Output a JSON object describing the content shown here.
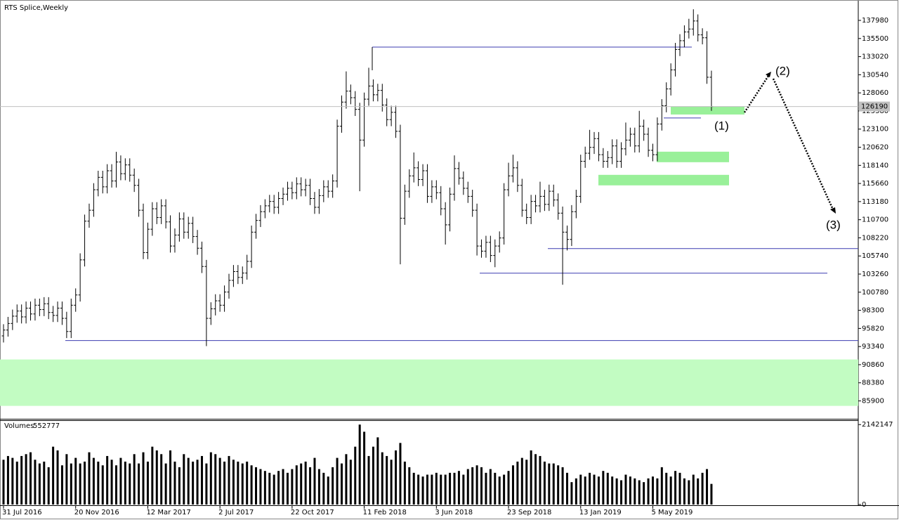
{
  "chart_data": {
    "type": "ohlc",
    "title": "RTS Splice,Weekly",
    "volume_name": "Volumes",
    "categories": [
      "31 Jul 2016",
      null,
      null,
      null,
      null,
      null,
      null,
      null,
      null,
      null,
      null,
      null,
      null,
      null,
      null,
      null,
      "20 Nov 2016",
      null,
      null,
      null,
      null,
      null,
      null,
      null,
      null,
      null,
      null,
      null,
      null,
      null,
      null,
      null,
      "12 Mar 2017",
      null,
      null,
      null,
      null,
      null,
      null,
      null,
      null,
      null,
      null,
      null,
      null,
      null,
      null,
      null,
      "2 Jul 2017",
      null,
      null,
      null,
      null,
      null,
      null,
      null,
      null,
      null,
      null,
      null,
      null,
      null,
      null,
      null,
      "22 Oct 2017",
      null,
      null,
      null,
      null,
      null,
      null,
      null,
      null,
      null,
      null,
      null,
      null,
      null,
      null,
      null,
      "11 Feb 2018",
      null,
      null,
      null,
      null,
      null,
      null,
      null,
      null,
      null,
      null,
      null,
      null,
      null,
      null,
      null,
      "3 Jun 2018",
      null,
      null,
      null,
      null,
      null,
      null,
      null,
      null,
      null,
      null,
      null,
      null,
      null,
      null,
      null,
      "23 Sep 2018",
      null,
      null,
      null,
      null,
      null,
      null,
      null,
      null,
      null,
      null,
      null,
      null,
      null,
      null,
      null,
      "13 Jan 2019",
      null,
      null,
      null,
      null,
      null,
      null,
      null,
      null,
      null,
      null,
      null,
      null,
      null,
      null,
      null,
      "5 May 2019",
      null,
      null,
      null,
      null,
      null,
      null,
      null,
      null,
      null,
      null,
      null,
      null,
      null
    ],
    "ohlc": [
      [
        94800,
        96400,
        93900,
        95600
      ],
      [
        95600,
        97400,
        94700,
        96500
      ],
      [
        96500,
        98400,
        95600,
        97500
      ],
      [
        97500,
        99100,
        96600,
        98200
      ],
      [
        98200,
        99100,
        96500,
        97400
      ],
      [
        97400,
        99500,
        96500,
        98600
      ],
      [
        98600,
        99500,
        96900,
        97800
      ],
      [
        97800,
        99900,
        96900,
        99000
      ],
      [
        99000,
        99900,
        97500,
        98400
      ],
      [
        98400,
        100100,
        97500,
        99200
      ],
      [
        99200,
        100100,
        97100,
        98000
      ],
      [
        98000,
        98900,
        96700,
        97600
      ],
      [
        97600,
        99500,
        96700,
        98600
      ],
      [
        98600,
        99500,
        96300,
        97200
      ],
      [
        97200,
        98100,
        94500,
        95400
      ],
      [
        95400,
        99900,
        94500,
        99000
      ],
      [
        99000,
        101300,
        98100,
        100400
      ],
      [
        100400,
        106100,
        99500,
        105200
      ],
      [
        105200,
        111400,
        104300,
        110500
      ],
      [
        110500,
        112900,
        109600,
        112000
      ],
      [
        112000,
        115700,
        111100,
        114800
      ],
      [
        114800,
        117400,
        113900,
        116500
      ],
      [
        116500,
        117400,
        114300,
        115200
      ],
      [
        115200,
        118300,
        114300,
        117400
      ],
      [
        117400,
        118300,
        115100,
        116000
      ],
      [
        116000,
        120000,
        115100,
        118600
      ],
      [
        118600,
        119500,
        116100,
        117000
      ],
      [
        117000,
        119100,
        116100,
        118200
      ],
      [
        118200,
        119100,
        115900,
        116800
      ],
      [
        116800,
        117700,
        114500,
        115400
      ],
      [
        115400,
        116300,
        111100,
        112000
      ],
      [
        112000,
        112900,
        105300,
        106200
      ],
      [
        106200,
        110300,
        105300,
        109400
      ],
      [
        109400,
        113100,
        108500,
        112200
      ],
      [
        112200,
        113100,
        110100,
        111000
      ],
      [
        111000,
        113500,
        110100,
        112600
      ],
      [
        112600,
        113500,
        109500,
        110400
      ],
      [
        110400,
        111300,
        106200,
        107100
      ],
      [
        107100,
        109500,
        106200,
        108600
      ],
      [
        108600,
        111700,
        107700,
        110800
      ],
      [
        110800,
        111700,
        108100,
        109000
      ],
      [
        109000,
        111100,
        108100,
        110200
      ],
      [
        110200,
        111100,
        107500,
        108400
      ],
      [
        108400,
        109300,
        105900,
        106800
      ],
      [
        106800,
        107700,
        103400,
        104300
      ],
      [
        104300,
        105200,
        93400,
        97200
      ],
      [
        97200,
        99400,
        96300,
        98500
      ],
      [
        98500,
        100500,
        97600,
        99600
      ],
      [
        99600,
        100500,
        98100,
        99000
      ],
      [
        99000,
        101700,
        98100,
        100800
      ],
      [
        100800,
        103300,
        99900,
        102400
      ],
      [
        102400,
        104500,
        101500,
        103600
      ],
      [
        103600,
        104500,
        101900,
        102800
      ],
      [
        102800,
        104300,
        101900,
        103400
      ],
      [
        103400,
        105900,
        102500,
        105000
      ],
      [
        105000,
        109900,
        104100,
        109000
      ],
      [
        109000,
        111500,
        108100,
        110600
      ],
      [
        110600,
        112700,
        109700,
        111800
      ],
      [
        111800,
        113500,
        110900,
        112600
      ],
      [
        112600,
        114100,
        111700,
        113200
      ],
      [
        113200,
        114100,
        111500,
        112400
      ],
      [
        112400,
        114500,
        111500,
        113600
      ],
      [
        113600,
        115100,
        112700,
        114200
      ],
      [
        114200,
        115900,
        113300,
        115000
      ],
      [
        115000,
        115900,
        113500,
        114400
      ],
      [
        114400,
        116500,
        113500,
        115600
      ],
      [
        115600,
        116500,
        113900,
        114800
      ],
      [
        114800,
        116300,
        113900,
        115400
      ],
      [
        115400,
        116300,
        112700,
        113600
      ],
      [
        113600,
        114500,
        111500,
        112400
      ],
      [
        112400,
        114900,
        111500,
        114000
      ],
      [
        114000,
        116100,
        113100,
        115200
      ],
      [
        115200,
        116100,
        113700,
        114600
      ],
      [
        114600,
        116900,
        113700,
        116000
      ],
      [
        116000,
        124400,
        115100,
        123500
      ],
      [
        123500,
        127700,
        122600,
        126800
      ],
      [
        126800,
        131000,
        125900,
        128300
      ],
      [
        128300,
        129200,
        126500,
        127400
      ],
      [
        127400,
        128300,
        124900,
        125800
      ],
      [
        125800,
        126700,
        114600,
        121600
      ],
      [
        121600,
        128100,
        120700,
        127200
      ],
      [
        127200,
        131500,
        126300,
        129000
      ],
      [
        129000,
        129900,
        126900,
        127800
      ],
      [
        127800,
        129300,
        126900,
        128400
      ],
      [
        128400,
        129300,
        125500,
        126400
      ],
      [
        126400,
        127300,
        123500,
        124400
      ],
      [
        124400,
        126300,
        123500,
        125400
      ],
      [
        125400,
        126300,
        121900,
        122800
      ],
      [
        122800,
        123700,
        104600,
        110900
      ],
      [
        110900,
        115500,
        110000,
        114600
      ],
      [
        114600,
        117600,
        113700,
        116700
      ],
      [
        116700,
        119900,
        115800,
        117800
      ],
      [
        117800,
        118700,
        115300,
        116200
      ],
      [
        116200,
        118300,
        115300,
        117400
      ],
      [
        117400,
        118300,
        113000,
        113900
      ],
      [
        113900,
        116100,
        113000,
        115200
      ],
      [
        115200,
        116100,
        113500,
        114400
      ],
      [
        114400,
        115300,
        111300,
        112200
      ],
      [
        112200,
        113100,
        107300,
        110000
      ],
      [
        110000,
        115100,
        109100,
        114200
      ],
      [
        114200,
        119500,
        113300,
        117700
      ],
      [
        117700,
        118600,
        115500,
        116400
      ],
      [
        116400,
        117300,
        114100,
        115000
      ],
      [
        115000,
        115900,
        113000,
        113900
      ],
      [
        113900,
        114800,
        111100,
        112000
      ],
      [
        112000,
        112900,
        105800,
        107100
      ],
      [
        107100,
        108000,
        105500,
        106400
      ],
      [
        106400,
        108500,
        105500,
        107600
      ],
      [
        107600,
        108500,
        104900,
        105800
      ],
      [
        105800,
        108000,
        104200,
        107100
      ],
      [
        107100,
        109100,
        106200,
        108200
      ],
      [
        108200,
        115700,
        107300,
        114800
      ],
      [
        114800,
        118500,
        113900,
        116700
      ],
      [
        116700,
        119600,
        115800,
        117800
      ],
      [
        117800,
        118700,
        114500,
        115400
      ],
      [
        115400,
        116300,
        111100,
        112000
      ],
      [
        112000,
        112900,
        110100,
        111000
      ],
      [
        111000,
        114100,
        110100,
        113200
      ],
      [
        113200,
        114100,
        111700,
        112600
      ],
      [
        112600,
        115900,
        111700,
        113900
      ],
      [
        113900,
        114800,
        111900,
        112800
      ],
      [
        112800,
        115500,
        111900,
        114600
      ],
      [
        114600,
        115500,
        112500,
        113400
      ],
      [
        113400,
        114300,
        110700,
        111600
      ],
      [
        111600,
        112500,
        101800,
        109000
      ],
      [
        109000,
        109900,
        106500,
        108000
      ],
      [
        108000,
        112700,
        107100,
        111800
      ],
      [
        111800,
        114800,
        110900,
        113900
      ],
      [
        113900,
        119600,
        113000,
        118700
      ],
      [
        118700,
        120700,
        117800,
        119800
      ],
      [
        119800,
        123000,
        118900,
        120600
      ],
      [
        120600,
        122700,
        119700,
        121800
      ],
      [
        121800,
        122700,
        118700,
        119600
      ],
      [
        119600,
        120500,
        117800,
        118700
      ],
      [
        118700,
        120100,
        117800,
        119200
      ],
      [
        119200,
        121700,
        118300,
        120800
      ],
      [
        120800,
        121700,
        117800,
        118700
      ],
      [
        118700,
        121300,
        117800,
        120400
      ],
      [
        120400,
        124000,
        119500,
        121600
      ],
      [
        121600,
        123300,
        120700,
        122400
      ],
      [
        122400,
        123300,
        119900,
        120800
      ],
      [
        120800,
        125600,
        119900,
        123500
      ],
      [
        123500,
        124400,
        121500,
        122400
      ],
      [
        122400,
        123300,
        119300,
        120200
      ],
      [
        120200,
        121100,
        118700,
        119600
      ],
      [
        119600,
        124700,
        118700,
        123800
      ],
      [
        123800,
        127200,
        122900,
        126300
      ],
      [
        126300,
        129500,
        125400,
        128600
      ],
      [
        128600,
        132100,
        127700,
        131200
      ],
      [
        131200,
        134900,
        130300,
        134000
      ],
      [
        134000,
        136100,
        133100,
        135200
      ],
      [
        135200,
        137300,
        134300,
        136400
      ],
      [
        136400,
        138200,
        135500,
        136800
      ],
      [
        136800,
        139500,
        135900,
        137900
      ],
      [
        137900,
        138800,
        135100,
        136000
      ],
      [
        136000,
        136900,
        134700,
        135600
      ],
      [
        135600,
        136500,
        129300,
        130200
      ],
      [
        130200,
        131100,
        125600,
        126190
      ]
    ],
    "volumes": [
      1200000,
      1300000,
      1250000,
      1150000,
      1300000,
      1350000,
      1400000,
      1200000,
      1100000,
      1150000,
      1000000,
      1550000,
      1450000,
      1050000,
      1350000,
      1100000,
      1250000,
      1100000,
      1150000,
      1400000,
      1250000,
      1150000,
      1050000,
      1300000,
      1200000,
      1050000,
      1250000,
      1150000,
      1100000,
      1350000,
      1100000,
      1400000,
      1150000,
      1550000,
      1450000,
      1350000,
      1100000,
      1450000,
      1150000,
      1000000,
      1350000,
      1250000,
      1150000,
      1200000,
      1300000,
      1100000,
      1400000,
      1350000,
      1250000,
      1150000,
      1300000,
      1200000,
      1150000,
      1100000,
      1150000,
      1050000,
      1000000,
      950000,
      900000,
      850000,
      800000,
      900000,
      950000,
      850000,
      950000,
      1050000,
      1100000,
      1150000,
      1000000,
      1250000,
      950000,
      850000,
      750000,
      1000000,
      1250000,
      1100000,
      1350000,
      1200000,
      1550000,
      2142000,
      1950000,
      1300000,
      1550000,
      1800000,
      1400000,
      1300000,
      1200000,
      1450000,
      1650000,
      1150000,
      1000000,
      850000,
      800000,
      750000,
      800000,
      800000,
      850000,
      800000,
      800000,
      850000,
      850000,
      900000,
      800000,
      950000,
      1000000,
      1050000,
      1000000,
      850000,
      950000,
      850000,
      750000,
      800000,
      900000,
      1050000,
      1150000,
      1250000,
      1200000,
      1450000,
      1350000,
      1300000,
      1150000,
      1100000,
      1100000,
      1050000,
      1000000,
      850000,
      600000,
      700000,
      800000,
      750000,
      850000,
      800000,
      750000,
      900000,
      850000,
      750000,
      700000,
      650000,
      800000,
      750000,
      700000,
      650000,
      600000,
      700000,
      750000,
      700000,
      1000000,
      850000,
      750000,
      900000,
      850000,
      700000,
      650000,
      800000,
      700000,
      850000,
      950000,
      552777
    ],
    "ylim": [
      83450,
      140290
    ],
    "yticks": [
      137980,
      135500,
      133020,
      130540,
      128060,
      125580,
      123100,
      120620,
      118140,
      115660,
      113180,
      110700,
      108220,
      105740,
      103260,
      100780,
      98300,
      95820,
      93340,
      90860,
      88380,
      85900
    ],
    "volume_ylim": [
      0,
      2259000
    ],
    "volume_yticks": [
      2142147,
      0
    ],
    "bar_color": "#000000",
    "volume_color": "#000000",
    "levels": [
      94160,
      134330,
      124620,
      106750,
      103380
    ],
    "level_color": "#3b3bb0",
    "zones": [
      [
        85220,
        91570
      ],
      [
        125100,
        126160
      ],
      [
        118570,
        120010
      ],
      [
        115400,
        116840
      ]
    ],
    "zone_colors": [
      "#c2fcc2",
      "#99f099",
      "#99f099",
      "#99f099"
    ],
    "annotations": [
      "(1)",
      "(2)",
      "(3)"
    ]
  }
}
